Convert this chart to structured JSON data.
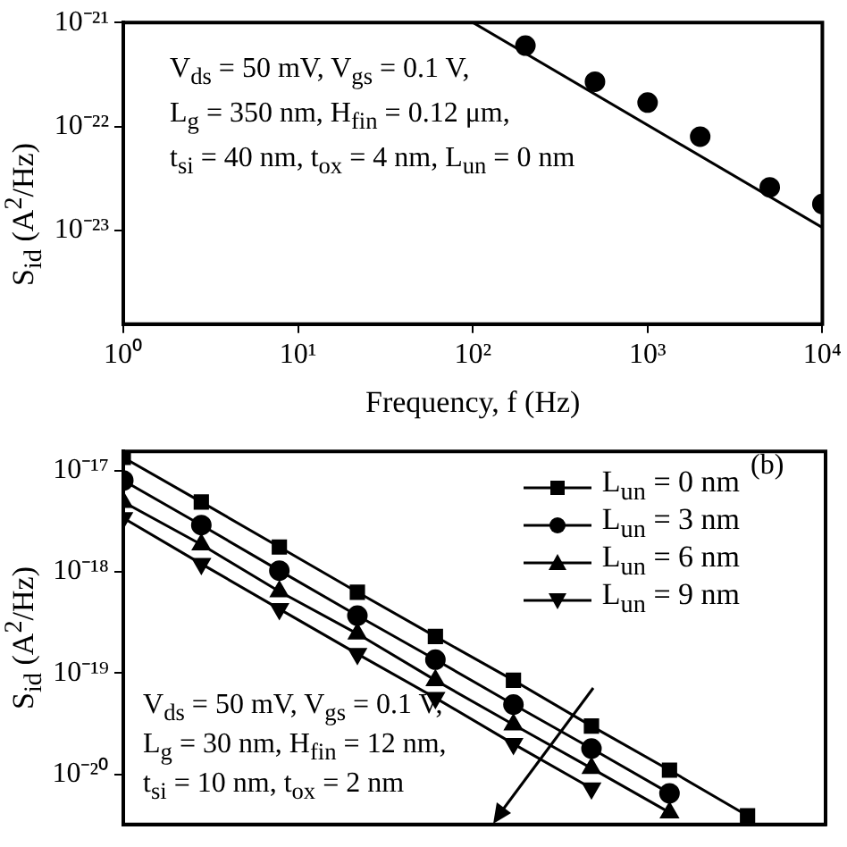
{
  "chart_data": [
    {
      "type": "scatter",
      "xlabel": "Frequency, f (Hz)",
      "ylabel": "S$_{id}$ (A$^{2}$/Hz)",
      "log": "xy",
      "grid": false,
      "legend": false,
      "xlim": [
        1,
        10000
      ],
      "xticks": [
        {
          "value": 1,
          "label": "10⁰"
        },
        {
          "value": 10,
          "label": "10¹"
        },
        {
          "value": 100,
          "label": "10²"
        },
        {
          "value": 1000,
          "label": "10³"
        },
        {
          "value": 10000,
          "label": "10⁴"
        }
      ],
      "ylim": [
        1.26e-24,
        1e-21
      ],
      "yticks": [
        {
          "value": 1e-23,
          "label": "10⁻²³"
        },
        {
          "value": 1e-22,
          "label": "10⁻²²"
        },
        {
          "value": 1e-21,
          "label": "10⁻²¹"
        }
      ],
      "annotations": [
        "V$_{ds}$ = 50 mV, V$_{gs}$ = 0.1 V,",
        "L$_{g}$ = 350 nm, H$_{fin}$ = 0.12 μm,",
        "t$_{si}$ = 40 nm, t$_{ox}$ = 4 nm, L$_{un}$ = 0 nm"
      ],
      "series": [
        {
          "type": "scatter",
          "color": "#000000",
          "marker": "circle",
          "x": [
            200,
            500,
            1000,
            2000,
            5000,
            10000
          ],
          "values": [
            6e-22,
            2.7e-22,
            1.7e-22,
            8e-23,
            2.6e-23,
            1.8e-23
          ]
        },
        {
          "type": "line",
          "color": "#000000",
          "marker": "none",
          "x": [
            100,
            10000
          ],
          "values": [
            1e-21,
            1.07e-23
          ]
        }
      ]
    },
    {
      "type": "line",
      "ylabel": "S$_{id}$ (A$^{2}$/Hz)",
      "log": "xy",
      "grid": false,
      "legend": "top right",
      "tick_labels": "y",
      "categories": [
        null,
        null,
        null,
        null,
        null,
        null,
        null,
        null,
        null
      ],
      "ylim": [
        3.2e-21,
        1.55e-17
      ],
      "yticks": [
        {
          "value": 1e-20,
          "label": "10⁻²⁰"
        },
        {
          "value": 1e-19,
          "label": "10⁻¹⁹"
        },
        {
          "value": 1e-18,
          "label": "10⁻¹⁸"
        },
        {
          "value": 1e-17,
          "label": "10⁻¹⁷"
        }
      ],
      "annotations": [
        "(b)",
        "V$_{ds}$ = 50 mV, V$_{gs}$ = 0.1 V,",
        "L$_{g}$ = 30 nm, H$_{fin}$ = 12 nm,",
        "t$_{si}$ = 10 nm, t$_{ox}$ = 2 nm"
      ],
      "series": [
        {
          "name": "L$_{un}$ = 0 nm",
          "color": "#000000",
          "marker": "square",
          "values": [
            1.35e-17,
            4.9e-18,
            1.76e-18,
            6.3e-19,
            2.3e-19,
            8.5e-20,
            3e-20,
            1.1e-20,
            3.9e-21
          ]
        },
        {
          "name": "L$_{un}$ = 3 nm",
          "color": "#000000",
          "marker": "circle",
          "values": [
            8e-18,
            2.9e-18,
            1.03e-18,
            3.7e-19,
            1.36e-19,
            4.9e-20,
            1.8e-20,
            6.5e-21,
            null
          ]
        },
        {
          "name": "L$_{un}$ = 6 nm",
          "color": "#000000",
          "marker": "triangle",
          "values": [
            4.9e-18,
            1.86e-18,
            6.4e-19,
            2.45e-19,
            8.5e-20,
            3.1e-20,
            1.15e-20,
            4.2e-21,
            null
          ]
        },
        {
          "name": "L$_{un}$ = 9 nm",
          "color": "#000000",
          "marker": "triangle-down",
          "values": [
            3.4e-18,
            1.2e-18,
            4.3e-19,
            1.55e-19,
            5.7e-20,
            2e-20,
            7.3e-21,
            null,
            null
          ]
        }
      ]
    }
  ]
}
